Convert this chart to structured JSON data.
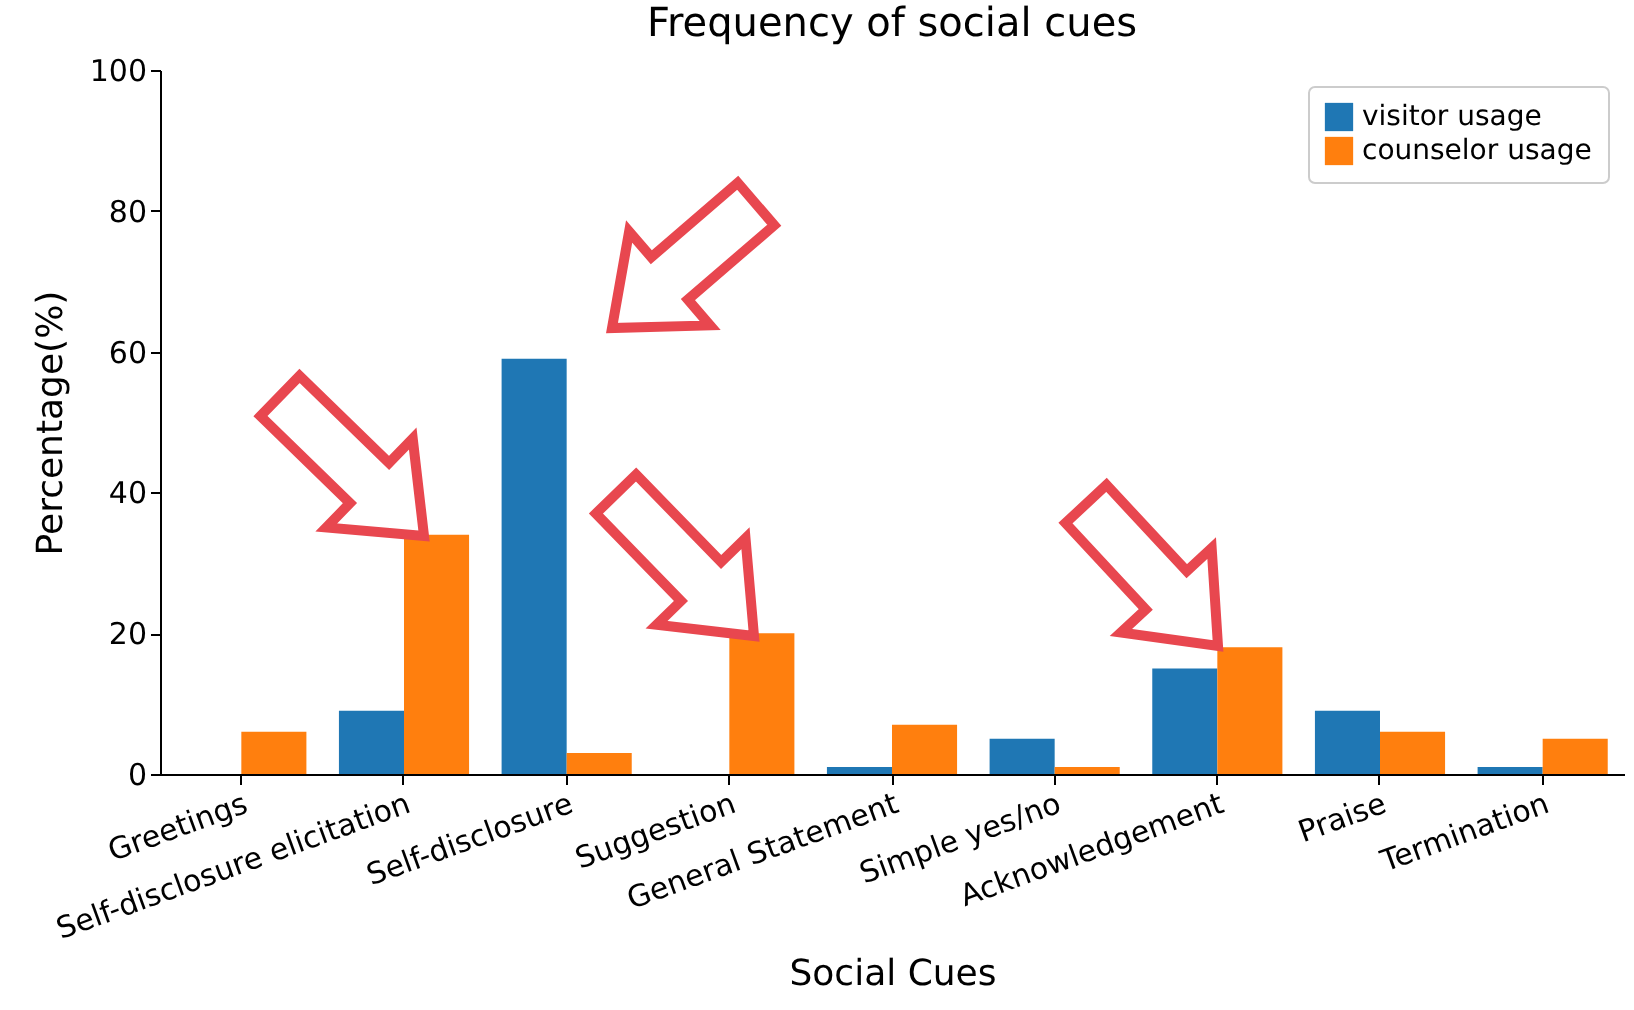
{
  "chart_data": {
    "type": "bar",
    "title": "Frequency of social cues",
    "xlabel": "Social Cues",
    "ylabel": "Percentage(%)",
    "categories": [
      "Greetings",
      "Self-disclosure elicitation",
      "Self-disclosure",
      "Suggestion",
      "General Statement",
      "Simple yes/no",
      "Acknowledgement",
      "Praise",
      "Termination"
    ],
    "series": [
      {
        "name": "visitor usage",
        "color": "#1f77b4",
        "values": [
          0,
          9,
          59,
          0,
          1,
          5,
          15,
          9,
          1
        ]
      },
      {
        "name": "counselor usage",
        "color": "#ff7f0e",
        "values": [
          6,
          34,
          3,
          20,
          7,
          1,
          18,
          6,
          5
        ]
      }
    ],
    "ylim": [
      0,
      100
    ],
    "yticks": [
      0,
      20,
      40,
      60,
      80,
      100
    ],
    "grid": false,
    "legend": "top right"
  }
}
